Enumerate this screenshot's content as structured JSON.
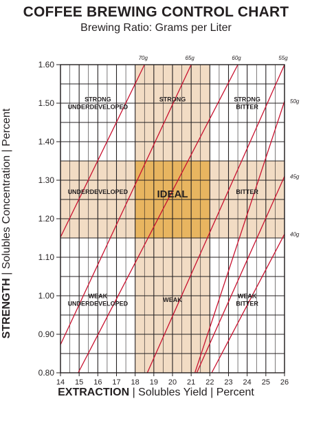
{
  "title": "COFFEE BREWING CONTROL CHART",
  "subtitle": "Brewing Ratio: Grams per Liter",
  "y_axis": {
    "bold": "STRENGTH",
    "sep1": " | ",
    "rest1": "Solubles Concentration",
    "sep2": " | ",
    "rest2": "Percent"
  },
  "x_axis": {
    "bold": "EXTRACTION",
    "sep1": " | ",
    "rest1": "Solubles Yield",
    "sep2": " | ",
    "rest2": "Percent"
  },
  "chart_data": {
    "type": "line",
    "xlim": [
      14,
      26
    ],
    "ylim": [
      0.8,
      1.6
    ],
    "x_ticks": [
      "14",
      "15",
      "16",
      "17",
      "18",
      "19",
      "20",
      "21",
      "22",
      "23",
      "24",
      "25",
      "26"
    ],
    "y_ticks": [
      "0.80",
      "0.90",
      "1.00",
      "1.10",
      "1.20",
      "1.30",
      "1.40",
      "1.50",
      "1.60"
    ],
    "grid": true,
    "ideal_zone": {
      "x": [
        18,
        22
      ],
      "y": [
        1.15,
        1.35
      ]
    },
    "band_color": "#f2dcc4",
    "ideal_color": "#e8b560",
    "line_color": "#c8102e",
    "ratio_lines": [
      {
        "label": "70g",
        "x": [
          18.5,
          14
        ],
        "y": [
          1.6,
          1.152
        ]
      },
      {
        "label": "65g",
        "x": [
          21.0,
          14
        ],
        "y": [
          1.6,
          0.873
        ]
      },
      {
        "label": "60g",
        "x": [
          23.5,
          14.95
        ],
        "y": [
          1.6,
          0.8
        ]
      },
      {
        "label": "55g",
        "x": [
          26.0,
          18.65
        ],
        "y": [
          1.6,
          0.8
        ]
      },
      {
        "label": "50g",
        "x": [
          26.0,
          21.2
        ],
        "y": [
          1.505,
          0.8
        ]
      },
      {
        "label": "45g",
        "x": [
          26.0,
          21.3
        ],
        "y": [
          1.31,
          0.8
        ]
      },
      {
        "label": "40g",
        "x": [
          26.0,
          22.1
        ],
        "y": [
          1.16,
          0.8
        ]
      }
    ],
    "region_labels": [
      {
        "lines": [
          "STRONG",
          "UNDERDEVELOPED"
        ],
        "x": 16.0,
        "y": 1.5
      },
      {
        "lines": [
          "STRONG"
        ],
        "x": 20.0,
        "y": 1.51
      },
      {
        "lines": [
          "STRONG",
          "BITTER"
        ],
        "x": 24.0,
        "y": 1.5
      },
      {
        "lines": [
          "UNDERDEVELOPED"
        ],
        "x": 16.0,
        "y": 1.27
      },
      {
        "lines": [
          "IDEAL"
        ],
        "x": 20.0,
        "y": 1.265,
        "big": true
      },
      {
        "lines": [
          "BITTER"
        ],
        "x": 24.0,
        "y": 1.27
      },
      {
        "lines": [
          "WEAK",
          "UNDERDEVELOPED"
        ],
        "x": 16.0,
        "y": 0.99
      },
      {
        "lines": [
          "WEAK"
        ],
        "x": 20.0,
        "y": 0.99
      },
      {
        "lines": [
          "WEAK",
          "BITTER"
        ],
        "x": 24.0,
        "y": 0.99
      }
    ]
  }
}
